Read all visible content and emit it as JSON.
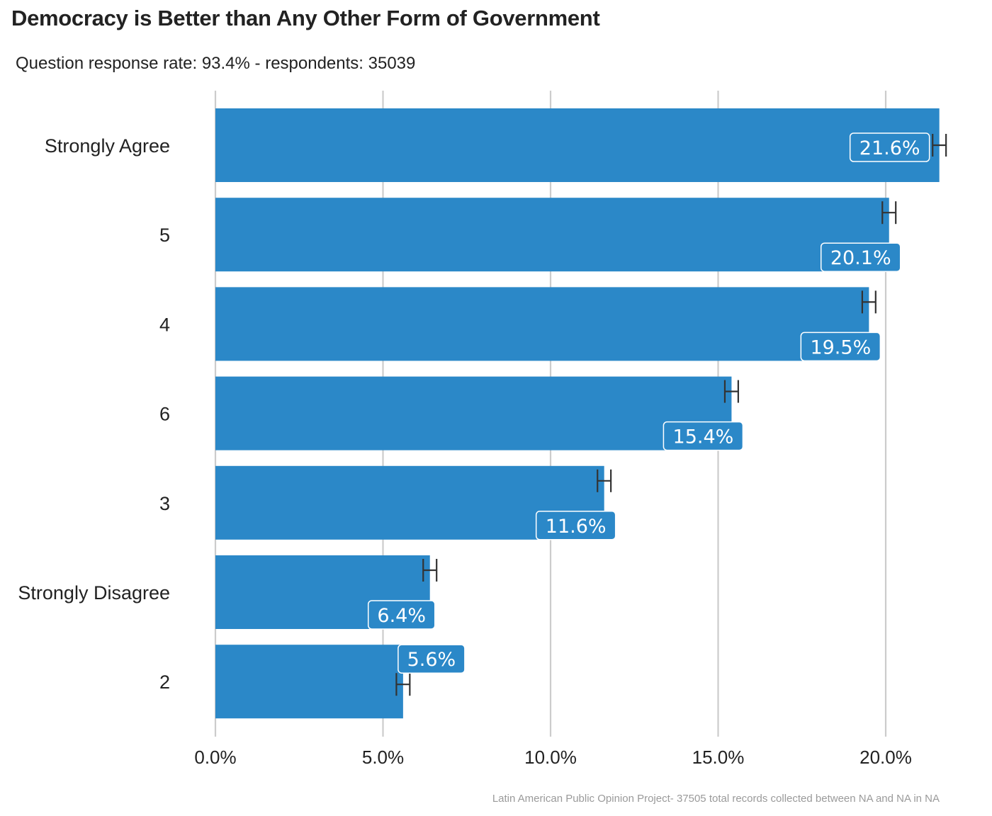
{
  "title": "Democracy is Better than Any Other Form of Government",
  "subtitle": "Question response rate: 93.4%  - respondents: 35039",
  "caption": "Latin American Public Opinion Project- 37505 total records collected between NA and NA in  NA",
  "colors": {
    "bar": "#2b88c8",
    "grid": "#cccccc",
    "errorbar": "#333333",
    "label_border": "#ffffff"
  },
  "chart_data": {
    "type": "bar",
    "orientation": "horizontal",
    "title": "Democracy is Better than Any Other Form of Government",
    "categories": [
      "Strongly Agree",
      "5",
      "4",
      "6",
      "3",
      "Strongly Disagree",
      "2"
    ],
    "values": [
      21.6,
      20.1,
      19.5,
      15.4,
      11.6,
      6.4,
      5.6
    ],
    "data_labels": [
      "21.6%",
      "20.1%",
      "19.5%",
      "15.4%",
      "11.6%",
      "6.4%",
      "5.6%"
    ],
    "error_low": [
      21.4,
      19.9,
      19.3,
      15.2,
      11.4,
      6.2,
      5.4
    ],
    "error_high": [
      21.8,
      20.3,
      19.7,
      15.6,
      11.8,
      6.6,
      5.8
    ],
    "xlim": [
      0,
      22.2
    ],
    "xticks": [
      0,
      5,
      10,
      15,
      20
    ],
    "xtick_labels": [
      "0.0%",
      "5.0%",
      "10.0%",
      "15.0%",
      "20.0%"
    ],
    "xlabel": "",
    "ylabel": "",
    "grid": true,
    "legend": "none"
  }
}
